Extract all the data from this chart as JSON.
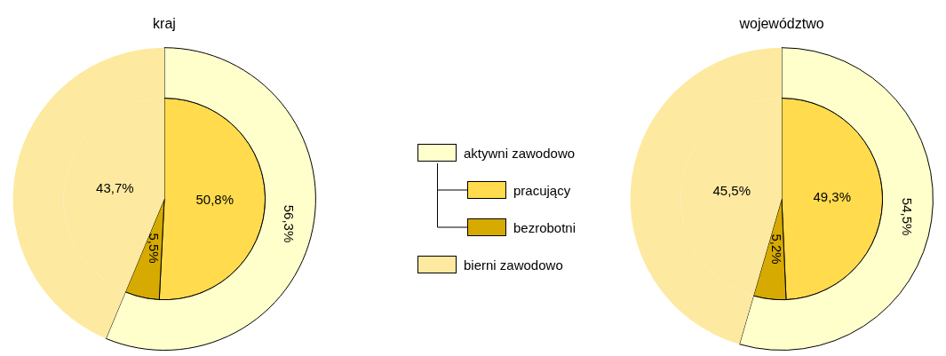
{
  "chart_data": [
    {
      "type": "pie",
      "title": "kraj",
      "categories": [
        "aktywni zawodowo",
        "pracujący",
        "bezrobotni",
        "bierni zawodowo"
      ],
      "colors": [
        "#ffffcc",
        "#ffdb4d",
        "#d6aa00",
        "#fde9a0"
      ],
      "legend": "right",
      "series": [
        {
          "values": [
            56.3,
            null,
            null,
            43.7
          ],
          "value_labels": [
            "56,3%",
            null,
            null,
            null
          ]
        },
        {
          "values": [
            null,
            50.8,
            5.5,
            43.7
          ],
          "value_labels": [
            null,
            "50,8%",
            "5,5%",
            "43,7%"
          ]
        }
      ]
    },
    {
      "type": "pie",
      "title": "województwo",
      "categories": [
        null,
        null,
        null,
        null
      ],
      "colors": [
        "#ffffcc",
        "#ffdb4d",
        "#d6aa00",
        "#fde9a0"
      ],
      "series": [
        {
          "values": [
            54.5,
            null,
            null,
            45.5
          ],
          "value_labels": [
            "54,5%",
            null,
            null,
            null
          ]
        },
        {
          "values": [
            null,
            49.3,
            5.2,
            45.5
          ],
          "value_labels": [
            null,
            "49,3%",
            "5,2%",
            "45,5%"
          ]
        }
      ]
    }
  ]
}
